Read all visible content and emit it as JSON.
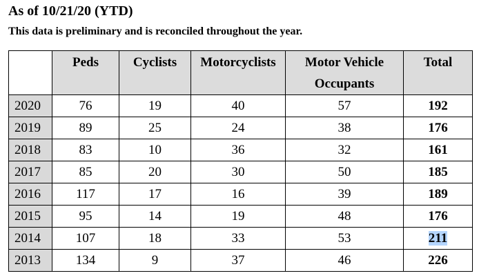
{
  "header": {
    "title": "As of 10/21/20 (YTD)",
    "subtitle": "This data is preliminary and is reconciled throughout the year."
  },
  "table": {
    "columns": [
      "Peds",
      "Cyclists",
      "Motorcyclists",
      "Motor Vehicle Occupants",
      "Total"
    ],
    "rows": [
      [
        "2020",
        76,
        19,
        40,
        57,
        192
      ],
      [
        "2019",
        89,
        25,
        24,
        38,
        176
      ],
      [
        "2018",
        83,
        10,
        36,
        32,
        161
      ],
      [
        "2017",
        85,
        20,
        30,
        50,
        185
      ],
      [
        "2016",
        117,
        17,
        16,
        39,
        189
      ],
      [
        "2015",
        95,
        14,
        19,
        48,
        176
      ],
      [
        "2014",
        107,
        18,
        33,
        53,
        211
      ],
      [
        "2013",
        134,
        9,
        37,
        46,
        226
      ]
    ]
  }
}
